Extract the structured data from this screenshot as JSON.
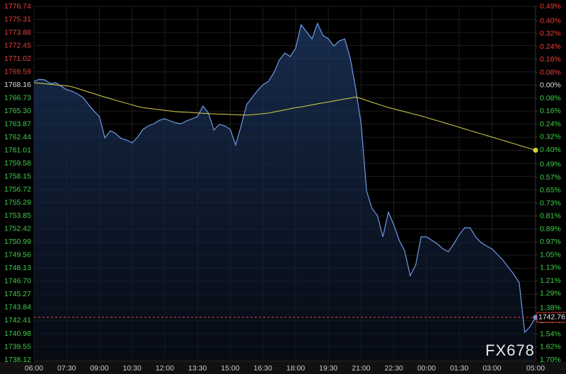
{
  "chart_data": {
    "type": "line",
    "x": [
      "06:00",
      "06:15",
      "06:30",
      "06:45",
      "07:00",
      "07:15",
      "07:30",
      "07:45",
      "08:00",
      "08:15",
      "08:30",
      "08:45",
      "09:00",
      "09:15",
      "09:30",
      "09:45",
      "10:00",
      "10:15",
      "10:30",
      "10:45",
      "11:00",
      "11:15",
      "11:30",
      "11:45",
      "12:00",
      "12:15",
      "12:30",
      "12:45",
      "13:00",
      "13:15",
      "13:30",
      "13:45",
      "14:00",
      "14:15",
      "14:30",
      "14:45",
      "15:00",
      "15:15",
      "15:30",
      "15:45",
      "16:00",
      "16:15",
      "16:30",
      "16:45",
      "17:00",
      "17:15",
      "17:30",
      "17:45",
      "18:00",
      "18:15",
      "18:30",
      "18:45",
      "19:00",
      "19:15",
      "19:30",
      "19:45",
      "20:00",
      "20:15",
      "20:30",
      "20:45",
      "21:00",
      "21:15",
      "21:30",
      "21:45",
      "22:00",
      "22:15",
      "22:30",
      "22:45",
      "23:00",
      "23:15",
      "23:30",
      "23:45",
      "00:00",
      "00:15",
      "00:30",
      "00:45",
      "01:00",
      "01:15",
      "01:30",
      "01:45",
      "02:00",
      "02:15",
      "02:30",
      "02:45",
      "03:00",
      "03:15",
      "03:30",
      "03:45",
      "04:00",
      "04:15",
      "04:30",
      "04:45",
      "05:00"
    ],
    "series": [
      {
        "color": "#6f9be8",
        "values": [
          1768.55,
          1768.78,
          1768.71,
          1768.32,
          1768.4,
          1768.01,
          1767.63,
          1767.47,
          1767.16,
          1766.78,
          1766.0,
          1765.31,
          1764.69,
          1762.37,
          1763.15,
          1762.84,
          1762.3,
          1762.14,
          1761.83,
          1762.45,
          1763.3,
          1763.69,
          1763.92,
          1764.3,
          1764.46,
          1764.23,
          1764.0,
          1763.92,
          1764.23,
          1764.46,
          1764.69,
          1765.85,
          1765.08,
          1763.22,
          1763.84,
          1763.69,
          1763.3,
          1761.6,
          1763.69,
          1766.0,
          1766.78,
          1767.55,
          1768.17,
          1768.55,
          1769.48,
          1770.87,
          1771.64,
          1771.26,
          1772.18,
          1774.73,
          1773.96,
          1773.19,
          1774.89,
          1773.57,
          1773.19,
          1772.41,
          1772.96,
          1773.19,
          1771.1,
          1767.78,
          1763.92,
          1756.58,
          1754.65,
          1753.88,
          1751.56,
          1754.26,
          1752.87,
          1751.17,
          1750.01,
          1747.31,
          1748.47,
          1751.56,
          1751.56,
          1751.17,
          1750.79,
          1750.25,
          1749.94,
          1750.79,
          1751.79,
          1752.56,
          1752.56,
          1751.56,
          1750.94,
          1750.56,
          1750.25,
          1749.63,
          1749.01,
          1748.24,
          1747.47,
          1746.54,
          1741.13,
          1741.75,
          1742.76
        ]
      },
      {
        "color": "#d8d04a",
        "values": [
          1768.4,
          1768.34,
          1768.28,
          1768.23,
          1768.17,
          1768.11,
          1768.05,
          1767.95,
          1767.77,
          1767.58,
          1767.39,
          1767.2,
          1767.01,
          1766.82,
          1766.65,
          1766.48,
          1766.31,
          1766.14,
          1765.98,
          1765.81,
          1765.67,
          1765.6,
          1765.53,
          1765.46,
          1765.38,
          1765.31,
          1765.24,
          1765.2,
          1765.17,
          1765.13,
          1765.1,
          1765.06,
          1765.02,
          1764.99,
          1764.97,
          1764.95,
          1764.92,
          1764.9,
          1764.88,
          1764.85,
          1764.9,
          1764.96,
          1765.02,
          1765.08,
          1765.2,
          1765.31,
          1765.43,
          1765.55,
          1765.67,
          1765.76,
          1765.87,
          1765.98,
          1766.09,
          1766.2,
          1766.3,
          1766.41,
          1766.51,
          1766.62,
          1766.72,
          1766.83,
          1766.67,
          1766.47,
          1766.27,
          1766.07,
          1765.87,
          1765.69,
          1765.54,
          1765.38,
          1765.23,
          1765.08,
          1764.92,
          1764.77,
          1764.6,
          1764.42,
          1764.24,
          1764.07,
          1763.89,
          1763.71,
          1763.53,
          1763.35,
          1763.17,
          1762.99,
          1762.81,
          1762.64,
          1762.46,
          1762.28,
          1762.1,
          1761.92,
          1761.74,
          1761.56,
          1761.38,
          1761.2,
          1761.02
        ]
      }
    ],
    "xlim": [
      "06:00",
      "05:00"
    ],
    "xticks": [
      "06:00",
      "07:30",
      "09:00",
      "10:30",
      "12:00",
      "13:30",
      "15:00",
      "16:30",
      "18:00",
      "19:30",
      "21:00",
      "22:30",
      "00:00",
      "01:30",
      "03:00",
      "05:00"
    ],
    "ylim": [
      1738.12,
      1776.74
    ],
    "yticks": [
      1776.74,
      1775.31,
      1773.88,
      1772.45,
      1771.02,
      1769.59,
      1768.16,
      1766.73,
      {
        "value": 1765.3,
        "label": "1765.30"
      },
      1763.87,
      1762.44,
      1761.01,
      1759.58,
      1758.15,
      1756.72,
      1755.29,
      1753.85,
      1752.42,
      1750.99,
      1749.56,
      1748.13,
      {
        "value": 1746.7,
        "label": "1746.70"
      },
      1745.27,
      1743.84,
      1742.41,
      1740.98,
      1739.55,
      1738.12
    ],
    "y2lim": [
      -1.7,
      0.49
    ],
    "y2ticks": [
      {
        "value": 0.49,
        "label": "0.49%"
      },
      {
        "value": 0.4,
        "label": "0.40%"
      },
      {
        "value": 0.32,
        "label": "0.32%"
      },
      {
        "value": 0.24,
        "label": "0.24%"
      },
      {
        "value": 0.16,
        "label": "0.16%"
      },
      {
        "value": 0.08,
        "label": "0.08%"
      },
      {
        "value": 0,
        "label": "0.00%"
      },
      {
        "value": -0.08,
        "label": "0.08%"
      },
      {
        "value": -0.16,
        "label": "0.16%"
      },
      {
        "value": -0.24,
        "label": "0.24%"
      },
      {
        "value": -0.32,
        "label": "0.32%"
      },
      {
        "value": -0.4,
        "label": "0.40%"
      },
      {
        "value": -0.49,
        "label": "0.49%"
      },
      {
        "value": -0.57,
        "label": "0.57%"
      },
      {
        "value": -0.65,
        "label": "0.65%"
      },
      {
        "value": -0.73,
        "label": "0.73%"
      },
      {
        "value": -0.81,
        "label": "0.81%"
      },
      {
        "value": -0.89,
        "label": "0.89%"
      },
      {
        "value": -0.97,
        "label": "0.97%"
      },
      {
        "value": -1.05,
        "label": "1.05%"
      },
      {
        "value": -1.13,
        "label": "1.13%"
      },
      {
        "value": -1.21,
        "label": "1.21%"
      },
      {
        "value": -1.29,
        "label": "1.29%"
      },
      {
        "value": -1.38,
        "label": "1.38%"
      },
      {
        "value": -1.46,
        "label": "1.46%"
      },
      {
        "value": -1.54,
        "label": "1.54%"
      },
      {
        "value": -1.62,
        "label": "1.62%"
      },
      {
        "value": -1.7,
        "label": "1.70%"
      }
    ],
    "last_price": 1742.76,
    "up_color": "#e8403a",
    "down_color": "#3fcf4a",
    "grid": true,
    "watermark": "FX678"
  }
}
